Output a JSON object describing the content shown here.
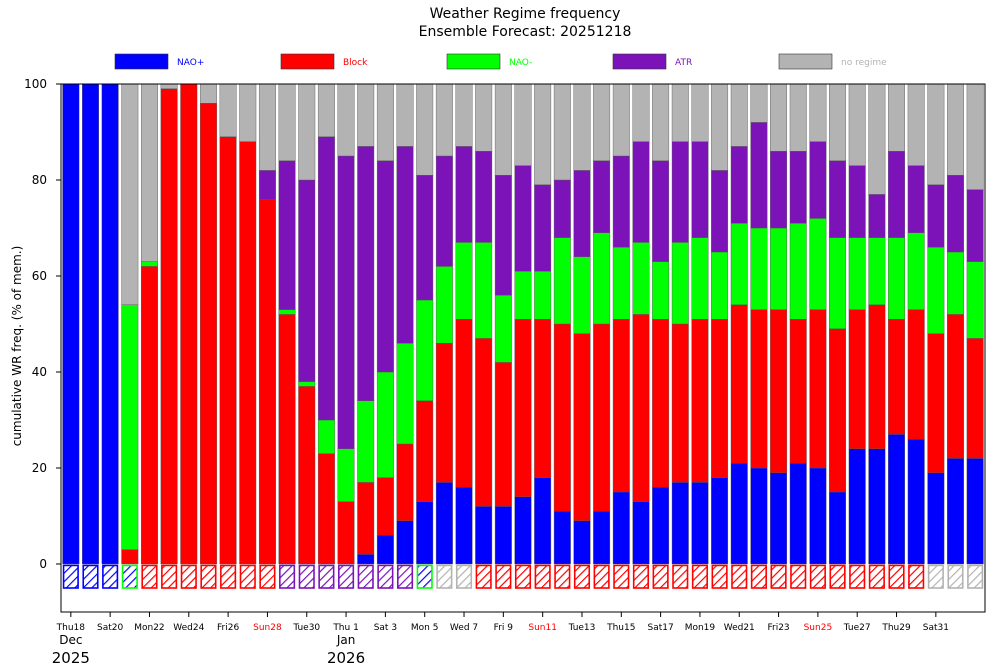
{
  "chart_data": {
    "type": "bar",
    "stacked": true,
    "title": "Weather Regime frequency",
    "subtitle": "Ensemble Forecast: 20251218",
    "ylabel": "cumulative WR freq. (% of mem.)",
    "ylim": [
      -10,
      100
    ],
    "yticks": [
      0,
      20,
      40,
      60,
      80,
      100
    ],
    "grid": false,
    "legend_position": "top",
    "series": [
      {
        "name": "NAO+",
        "color": "#0000ff",
        "values": [
          100,
          100,
          100,
          0,
          0,
          0,
          0,
          0,
          0,
          0,
          0,
          0,
          0,
          0,
          0,
          2,
          6,
          9,
          13,
          17,
          16,
          12,
          12,
          14,
          18,
          11,
          9,
          11,
          15,
          13,
          16,
          17,
          17,
          18,
          21,
          20,
          19,
          21,
          20,
          15,
          24,
          24,
          27,
          26,
          19,
          22,
          22
        ]
      },
      {
        "name": "Block",
        "color": "#ff0000",
        "values": [
          0,
          0,
          0,
          3,
          62,
          99,
          100,
          96,
          89,
          88,
          76,
          52,
          37,
          23,
          13,
          15,
          12,
          16,
          21,
          29,
          35,
          35,
          30,
          37,
          33,
          39,
          39,
          39,
          36,
          39,
          35,
          33,
          34,
          33,
          33,
          33,
          34,
          30,
          33,
          34,
          29,
          30,
          24,
          27,
          29,
          30,
          25
        ]
      },
      {
        "name": "NAO-",
        "color": "#00ff00",
        "values": [
          0,
          0,
          0,
          51,
          1,
          0,
          0,
          0,
          0,
          0,
          0,
          1,
          1,
          7,
          11,
          17,
          22,
          21,
          21,
          16,
          16,
          20,
          14,
          10,
          10,
          18,
          16,
          19,
          15,
          15,
          12,
          17,
          17,
          14,
          17,
          17,
          17,
          20,
          19,
          19,
          15,
          14,
          17,
          16,
          18,
          13,
          16
        ]
      },
      {
        "name": "ATR",
        "color": "#7b13b8",
        "values": [
          0,
          0,
          0,
          0,
          0,
          0,
          0,
          0,
          0,
          0,
          6,
          31,
          42,
          59,
          61,
          53,
          44,
          41,
          26,
          23,
          20,
          19,
          25,
          22,
          18,
          12,
          18,
          15,
          19,
          21,
          21,
          21,
          20,
          17,
          16,
          22,
          16,
          15,
          16,
          16,
          15,
          9,
          18,
          14,
          13,
          16,
          15
        ]
      },
      {
        "name": "no regime",
        "color": "#b3b3b3",
        "values": [
          0,
          0,
          0,
          46,
          37,
          1,
          0,
          4,
          11,
          12,
          18,
          16,
          20,
          11,
          15,
          13,
          16,
          13,
          19,
          15,
          13,
          14,
          19,
          17,
          21,
          20,
          18,
          16,
          15,
          12,
          16,
          12,
          12,
          18,
          13,
          8,
          14,
          14,
          12,
          16,
          17,
          23,
          14,
          17,
          21,
          19,
          22
        ]
      }
    ],
    "dominant": [
      "NAO+",
      "NAO+",
      "NAO+",
      "NAO-",
      "Block",
      "Block",
      "Block",
      "Block",
      "Block",
      "Block",
      "Block",
      "ATR",
      "ATR",
      "ATR",
      "ATR",
      "ATR",
      "ATR",
      "ATR",
      "NAO-",
      "no regime",
      "no regime",
      "Block",
      "Block",
      "Block",
      "Block",
      "Block",
      "Block",
      "Block",
      "Block",
      "Block",
      "Block",
      "Block",
      "Block",
      "Block",
      "Block",
      "Block",
      "Block",
      "Block",
      "Block",
      "Block",
      "Block",
      "Block",
      "Block",
      "Block",
      "no regime",
      "no regime",
      "no regime"
    ],
    "xtick_labels": [
      {
        "index": 0,
        "label": "Thu18",
        "color": "#000000"
      },
      {
        "index": 2,
        "label": "Sat20",
        "color": "#000000"
      },
      {
        "index": 4,
        "label": "Mon22",
        "color": "#000000"
      },
      {
        "index": 6,
        "label": "Wed24",
        "color": "#000000"
      },
      {
        "index": 8,
        "label": "Fri26",
        "color": "#000000"
      },
      {
        "index": 10,
        "label": "Sun28",
        "color": "#ff0000"
      },
      {
        "index": 12,
        "label": "Tue30",
        "color": "#000000"
      },
      {
        "index": 14,
        "label": "Thu 1",
        "color": "#000000"
      },
      {
        "index": 16,
        "label": "Sat 3",
        "color": "#000000"
      },
      {
        "index": 18,
        "label": "Mon 5",
        "color": "#000000"
      },
      {
        "index": 20,
        "label": "Wed 7",
        "color": "#000000"
      },
      {
        "index": 22,
        "label": "Fri 9",
        "color": "#000000"
      },
      {
        "index": 24,
        "label": "Sun11",
        "color": "#ff0000"
      },
      {
        "index": 26,
        "label": "Tue13",
        "color": "#000000"
      },
      {
        "index": 28,
        "label": "Thu15",
        "color": "#000000"
      },
      {
        "index": 30,
        "label": "Sat17",
        "color": "#000000"
      },
      {
        "index": 32,
        "label": "Mon19",
        "color": "#000000"
      },
      {
        "index": 34,
        "label": "Wed21",
        "color": "#000000"
      },
      {
        "index": 36,
        "label": "Fri23",
        "color": "#000000"
      },
      {
        "index": 38,
        "label": "Sun25",
        "color": "#ff0000"
      },
      {
        "index": 40,
        "label": "Tue27",
        "color": "#000000"
      },
      {
        "index": 42,
        "label": "Thu29",
        "color": "#000000"
      },
      {
        "index": 44,
        "label": "Sat31",
        "color": "#000000"
      }
    ],
    "month_labels": [
      {
        "index": 0,
        "month": "Dec",
        "year": "2025"
      },
      {
        "index": 14,
        "month": "Jan",
        "year": "2026"
      }
    ]
  }
}
